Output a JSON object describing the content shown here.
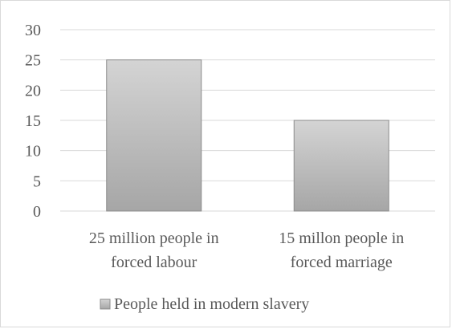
{
  "chart_data": {
    "type": "bar",
    "title": "",
    "xlabel": "",
    "ylabel": "",
    "categories": [
      [
        "25 million people in",
        "forced labour"
      ],
      [
        "15 millon people in",
        "forced marriage"
      ]
    ],
    "series": [
      {
        "name": "People held in modern slavery",
        "values": [
          25,
          15
        ],
        "color_top": "#d4d4d4",
        "color_bottom": "#a6a6a6",
        "border": "#8c8c8c"
      }
    ],
    "ylim": [
      0,
      30
    ],
    "yticks": [
      0,
      5,
      10,
      15,
      20,
      25,
      30
    ],
    "grid": true,
    "legend": "bottom"
  },
  "colors": {
    "gridline": "#d9d9d9",
    "text": "#595959",
    "border": "#d9d9d9"
  }
}
